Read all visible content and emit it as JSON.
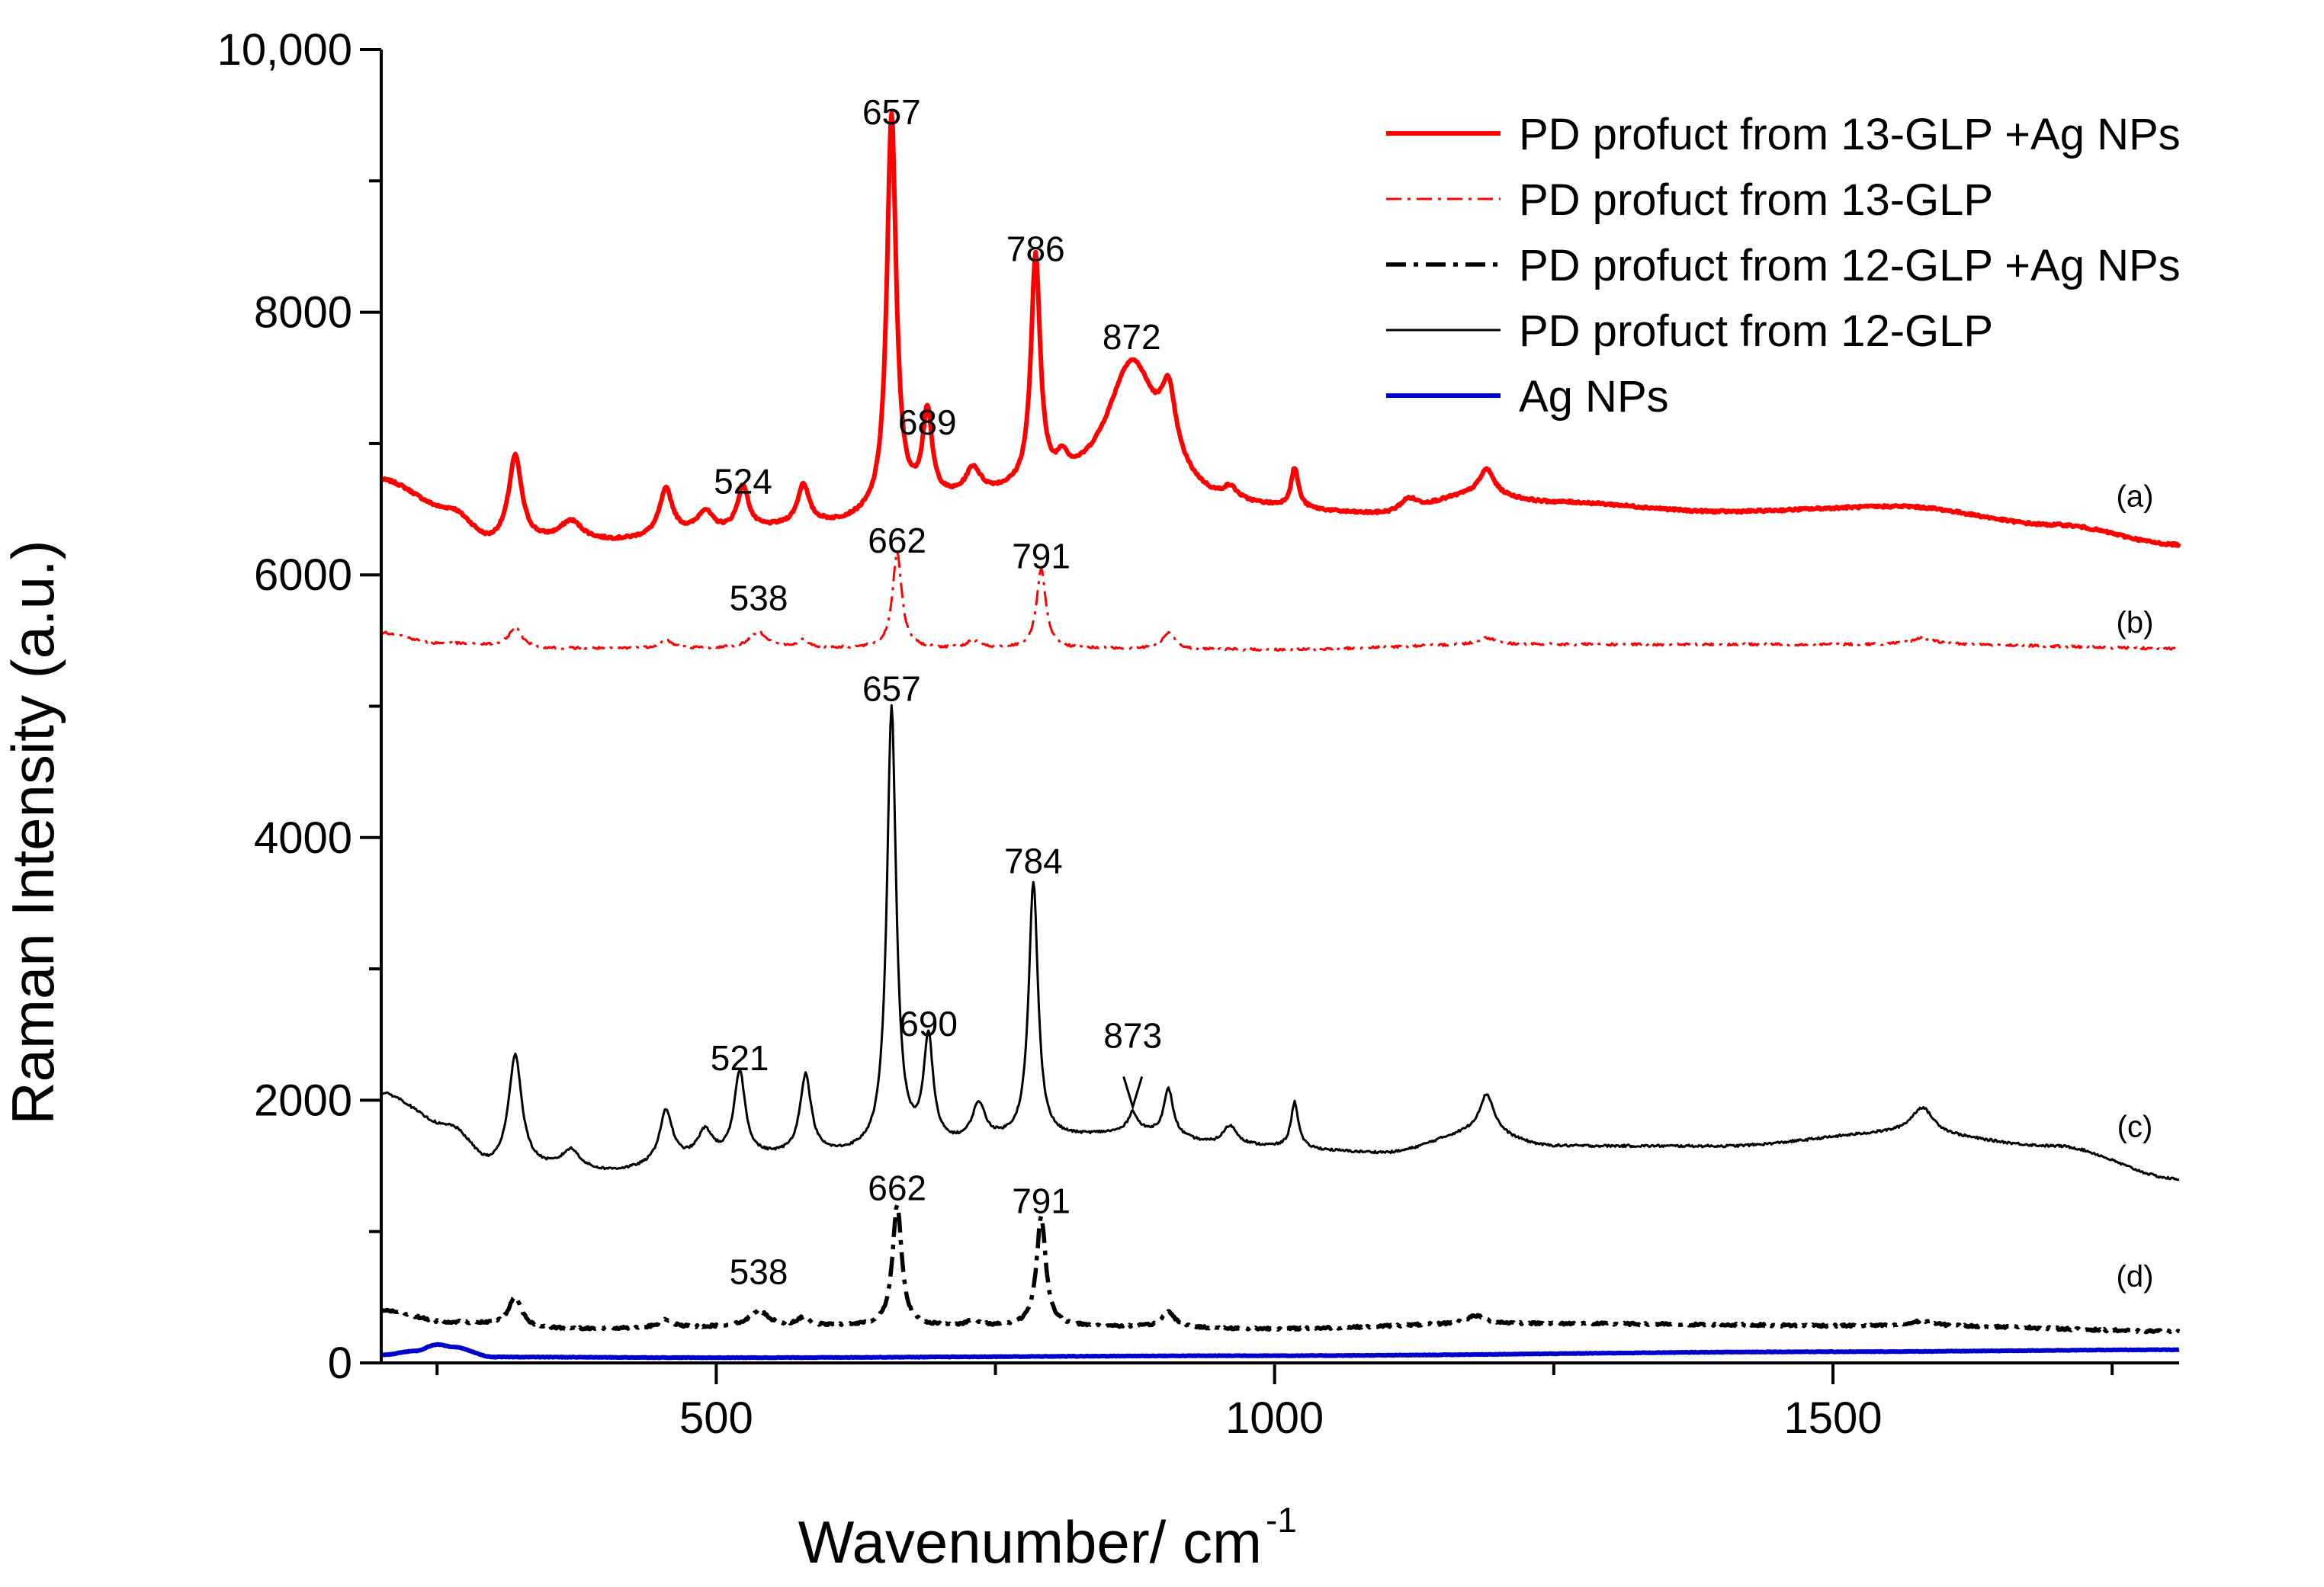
{
  "chart_data": {
    "type": "line",
    "title": "",
    "xlabel": "Wavenumber/ cm",
    "xlabel_sup": "-1",
    "ylabel": "Raman Intensity (a.u.)",
    "xlim": [
      200,
      1810
    ],
    "ylim": [
      0,
      10000
    ],
    "xticks": [
      500,
      1000,
      1500
    ],
    "xtick_labels": [
      "500",
      "1000",
      "1500"
    ],
    "yticks": [
      0,
      2000,
      4000,
      6000,
      8000,
      10000
    ],
    "ytick_labels": [
      "0",
      "2000",
      "4000",
      "6000",
      "8000",
      "10,000"
    ],
    "legend_position": "top-right",
    "series": [
      {
        "name": "PD profuct from 13-GLP +Ag NPs",
        "color": "#ff0000",
        "line_style": "solid-thick",
        "trace_label": "(a)",
        "baseline_points": [
          [
            200,
            6720
          ],
          [
            260,
            6500
          ],
          [
            300,
            6250
          ],
          [
            400,
            6250
          ],
          [
            500,
            6320
          ],
          [
            600,
            6380
          ],
          [
            700,
            6550
          ],
          [
            780,
            6600
          ],
          [
            880,
            6700
          ],
          [
            960,
            6500
          ],
          [
            1100,
            6450
          ],
          [
            1180,
            6600
          ],
          [
            1250,
            6550
          ],
          [
            1400,
            6480
          ],
          [
            1560,
            6520
          ],
          [
            1700,
            6380
          ],
          [
            1810,
            6230
          ]
        ],
        "peaks": [
          [
            320,
            650,
            7
          ],
          [
            370,
            150,
            12
          ],
          [
            455,
            350,
            7
          ],
          [
            490,
            150,
            8
          ],
          [
            524,
            330,
            6
          ],
          [
            578,
            300,
            6
          ],
          [
            657,
            3000,
            5
          ],
          [
            689,
            650,
            5
          ],
          [
            730,
            200,
            8
          ],
          [
            786,
            1750,
            5
          ],
          [
            810,
            150,
            6
          ],
          [
            872,
            900,
            26
          ],
          [
            905,
            500,
            8
          ],
          [
            960,
            100,
            8
          ],
          [
            1018,
            300,
            4
          ],
          [
            1120,
            100,
            10
          ],
          [
            1190,
            200,
            8
          ]
        ],
        "peak_labels": [
          {
            "x": 524,
            "y": 6620,
            "text": "524"
          },
          {
            "x": 657,
            "y": 9430,
            "text": "657"
          },
          {
            "x": 689,
            "y": 7070,
            "text": "689"
          },
          {
            "x": 786,
            "y": 8390,
            "text": "786"
          },
          {
            "x": 872,
            "y": 7720,
            "text": "872"
          }
        ]
      },
      {
        "name": "PD profuct from 13-GLP",
        "color": "#ff0000",
        "line_style": "dash-dot-thin",
        "trace_label": "(b)",
        "baseline_points": [
          [
            200,
            5560
          ],
          [
            250,
            5480
          ],
          [
            350,
            5440
          ],
          [
            600,
            5440
          ],
          [
            800,
            5440
          ],
          [
            1000,
            5430
          ],
          [
            1200,
            5470
          ],
          [
            1600,
            5470
          ],
          [
            1810,
            5440
          ]
        ],
        "peaks": [
          [
            320,
            150,
            7
          ],
          [
            455,
            60,
            7
          ],
          [
            538,
            120,
            10
          ],
          [
            578,
            60,
            6
          ],
          [
            662,
            730,
            5
          ],
          [
            730,
            60,
            6
          ],
          [
            791,
            600,
            5
          ],
          [
            905,
            120,
            7
          ],
          [
            1190,
            50,
            10
          ],
          [
            1580,
            50,
            12
          ]
        ],
        "peak_labels": [
          {
            "x": 538,
            "y": 5730,
            "text": "538"
          },
          {
            "x": 662,
            "y": 6170,
            "text": "662"
          },
          {
            "x": 791,
            "y": 6050,
            "text": "791"
          }
        ]
      },
      {
        "name": "PD profuct from 12-GLP +Ag NPs",
        "color": "#000000",
        "line_style": "dash-dot-thick",
        "trace_label": "(d)",
        "baseline_points": [
          [
            200,
            400
          ],
          [
            260,
            310
          ],
          [
            350,
            260
          ],
          [
            600,
            280
          ],
          [
            800,
            280
          ],
          [
            1000,
            260
          ],
          [
            1200,
            300
          ],
          [
            1600,
            280
          ],
          [
            1810,
            240
          ]
        ],
        "peaks": [
          [
            320,
            230,
            7
          ],
          [
            455,
            60,
            7
          ],
          [
            538,
            120,
            10
          ],
          [
            578,
            60,
            6
          ],
          [
            662,
            920,
            5
          ],
          [
            730,
            40,
            6
          ],
          [
            791,
            830,
            5
          ],
          [
            905,
            120,
            7
          ],
          [
            1180,
            60,
            10
          ],
          [
            1580,
            40,
            12
          ]
        ],
        "peak_labels": [
          {
            "x": 538,
            "y": 600,
            "text": "538"
          },
          {
            "x": 662,
            "y": 1240,
            "text": "662"
          },
          {
            "x": 791,
            "y": 1140,
            "text": "791"
          }
        ]
      },
      {
        "name": "PD profuct from 12-GLP",
        "color": "#000000",
        "line_style": "solid-thin",
        "trace_label": "(c)",
        "baseline_points": [
          [
            200,
            2050
          ],
          [
            260,
            1800
          ],
          [
            300,
            1500
          ],
          [
            400,
            1450
          ],
          [
            500,
            1550
          ],
          [
            600,
            1580
          ],
          [
            700,
            1650
          ],
          [
            780,
            1700
          ],
          [
            880,
            1750
          ],
          [
            960,
            1650
          ],
          [
            1100,
            1600
          ],
          [
            1180,
            1750
          ],
          [
            1250,
            1650
          ],
          [
            1400,
            1650
          ],
          [
            1560,
            1750
          ],
          [
            1700,
            1650
          ],
          [
            1810,
            1400
          ]
        ],
        "peaks": [
          [
            320,
            850,
            7
          ],
          [
            370,
            150,
            10
          ],
          [
            455,
            400,
            7
          ],
          [
            490,
            200,
            8
          ],
          [
            521,
            650,
            6
          ],
          [
            580,
            600,
            6
          ],
          [
            657,
            3350,
            5
          ],
          [
            690,
            800,
            5
          ],
          [
            735,
            280,
            7
          ],
          [
            784,
            1950,
            5
          ],
          [
            873,
            150,
            5
          ],
          [
            905,
            350,
            5
          ],
          [
            960,
            150,
            8
          ],
          [
            1018,
            350,
            4
          ],
          [
            1190,
            300,
            8
          ],
          [
            1580,
            200,
            12
          ]
        ],
        "peak_labels": [
          {
            "x": 521,
            "y": 2230,
            "text": "521"
          },
          {
            "x": 657,
            "y": 5040,
            "text": "657"
          },
          {
            "x": 690,
            "y": 2490,
            "text": "690"
          },
          {
            "x": 784,
            "y": 3730,
            "text": "784"
          },
          {
            "x": 873,
            "y": 2400,
            "text": "873"
          }
        ]
      },
      {
        "name": "Ag NPs",
        "color": "#0000cc",
        "line_style": "solid-thick",
        "trace_label": "",
        "baseline_points": [
          [
            200,
            60
          ],
          [
            230,
            90
          ],
          [
            250,
            140
          ],
          [
            265,
            120
          ],
          [
            300,
            45
          ],
          [
            500,
            40
          ],
          [
            1000,
            55
          ],
          [
            1500,
            85
          ],
          [
            1810,
            100
          ]
        ],
        "peaks": [],
        "peak_labels": []
      }
    ]
  }
}
